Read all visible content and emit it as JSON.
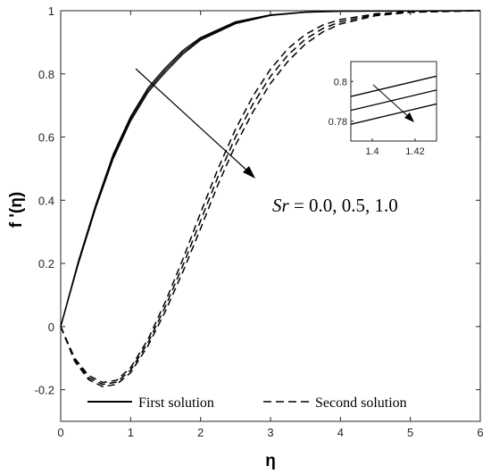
{
  "chart_data": {
    "type": "line",
    "xlabel": "η",
    "ylabel": "f '(η)",
    "xlim": [
      0,
      6
    ],
    "ylim": [
      -0.3,
      1
    ],
    "x_ticks": [
      "0",
      "1",
      "2",
      "3",
      "4",
      "5",
      "6"
    ],
    "y_ticks": [
      "-0.2",
      "0",
      "0.2",
      "0.4",
      "0.6",
      "0.8",
      "1"
    ],
    "annotation": {
      "var": "Sr",
      "rest": " = 0.0, 0.5, 1.0"
    },
    "legend": {
      "position": "bottom-center",
      "entries": [
        "First solution",
        "Second solution"
      ]
    },
    "series": [
      {
        "name": "First solution",
        "style": "solid",
        "curves": [
          {
            "x": [
              0,
              0.25,
              0.5,
              0.75,
              1.0,
              1.25,
              1.4,
              1.5,
              1.75,
              2.0,
              2.5,
              3.0,
              3.5,
              4.0,
              6.0
            ],
            "y": [
              0,
              0.205,
              0.385,
              0.545,
              0.665,
              0.756,
              0.795,
              0.82,
              0.875,
              0.915,
              0.965,
              0.987,
              0.996,
              0.999,
              1.0
            ]
          },
          {
            "x": [
              0,
              0.25,
              0.5,
              0.75,
              1.0,
              1.25,
              1.4,
              1.5,
              1.75,
              2.0,
              2.5,
              3.0,
              3.5,
              4.0,
              6.0
            ],
            "y": [
              0,
              0.201,
              0.38,
              0.538,
              0.658,
              0.749,
              0.788,
              0.813,
              0.869,
              0.911,
              0.962,
              0.986,
              0.995,
              0.999,
              1.0
            ]
          },
          {
            "x": [
              0,
              0.25,
              0.5,
              0.75,
              1.0,
              1.25,
              1.4,
              1.5,
              1.75,
              2.0,
              2.5,
              3.0,
              3.5,
              4.0,
              6.0
            ],
            "y": [
              0,
              0.197,
              0.375,
              0.531,
              0.651,
              0.742,
              0.781,
              0.806,
              0.863,
              0.907,
              0.959,
              0.985,
              0.995,
              0.998,
              1.0
            ]
          }
        ]
      },
      {
        "name": "Second solution",
        "style": "dashed",
        "curves": [
          {
            "x": [
              0,
              0.2,
              0.4,
              0.6,
              0.8,
              1.0,
              1.25,
              1.5,
              1.75,
              2.0,
              2.25,
              2.5,
              2.75,
              3.0,
              3.25,
              3.5,
              3.75,
              4.0,
              4.5,
              5.0,
              6.0
            ],
            "y": [
              0,
              -0.1,
              -0.155,
              -0.177,
              -0.17,
              -0.13,
              -0.04,
              0.08,
              0.215,
              0.36,
              0.5,
              0.625,
              0.73,
              0.815,
              0.88,
              0.925,
              0.955,
              0.972,
              0.99,
              0.997,
              1.0
            ]
          },
          {
            "x": [
              0,
              0.2,
              0.4,
              0.6,
              0.8,
              1.0,
              1.25,
              1.5,
              1.75,
              2.0,
              2.25,
              2.5,
              2.75,
              3.0,
              3.25,
              3.5,
              3.75,
              4.0,
              4.5,
              5.0,
              6.0
            ],
            "y": [
              0,
              -0.105,
              -0.162,
              -0.183,
              -0.176,
              -0.138,
              -0.05,
              0.065,
              0.195,
              0.335,
              0.475,
              0.6,
              0.705,
              0.792,
              0.86,
              0.91,
              0.944,
              0.965,
              0.987,
              0.996,
              1.0
            ]
          },
          {
            "x": [
              0,
              0.2,
              0.4,
              0.6,
              0.8,
              1.0,
              1.25,
              1.5,
              1.75,
              2.0,
              2.25,
              2.5,
              2.75,
              3.0,
              3.25,
              3.5,
              3.75,
              4.0,
              4.5,
              5.0,
              6.0
            ],
            "y": [
              0,
              -0.11,
              -0.168,
              -0.19,
              -0.183,
              -0.146,
              -0.06,
              0.05,
              0.175,
              0.31,
              0.45,
              0.575,
              0.68,
              0.77,
              0.84,
              0.895,
              0.933,
              0.958,
              0.984,
              0.995,
              1.0
            ]
          }
        ]
      }
    ],
    "inset": {
      "xlim": [
        1.39,
        1.43
      ],
      "ylim": [
        0.77,
        0.81
      ],
      "x_ticks": [
        "1.4",
        "1.42"
      ],
      "y_ticks": [
        "0.78",
        "0.8"
      ]
    }
  }
}
